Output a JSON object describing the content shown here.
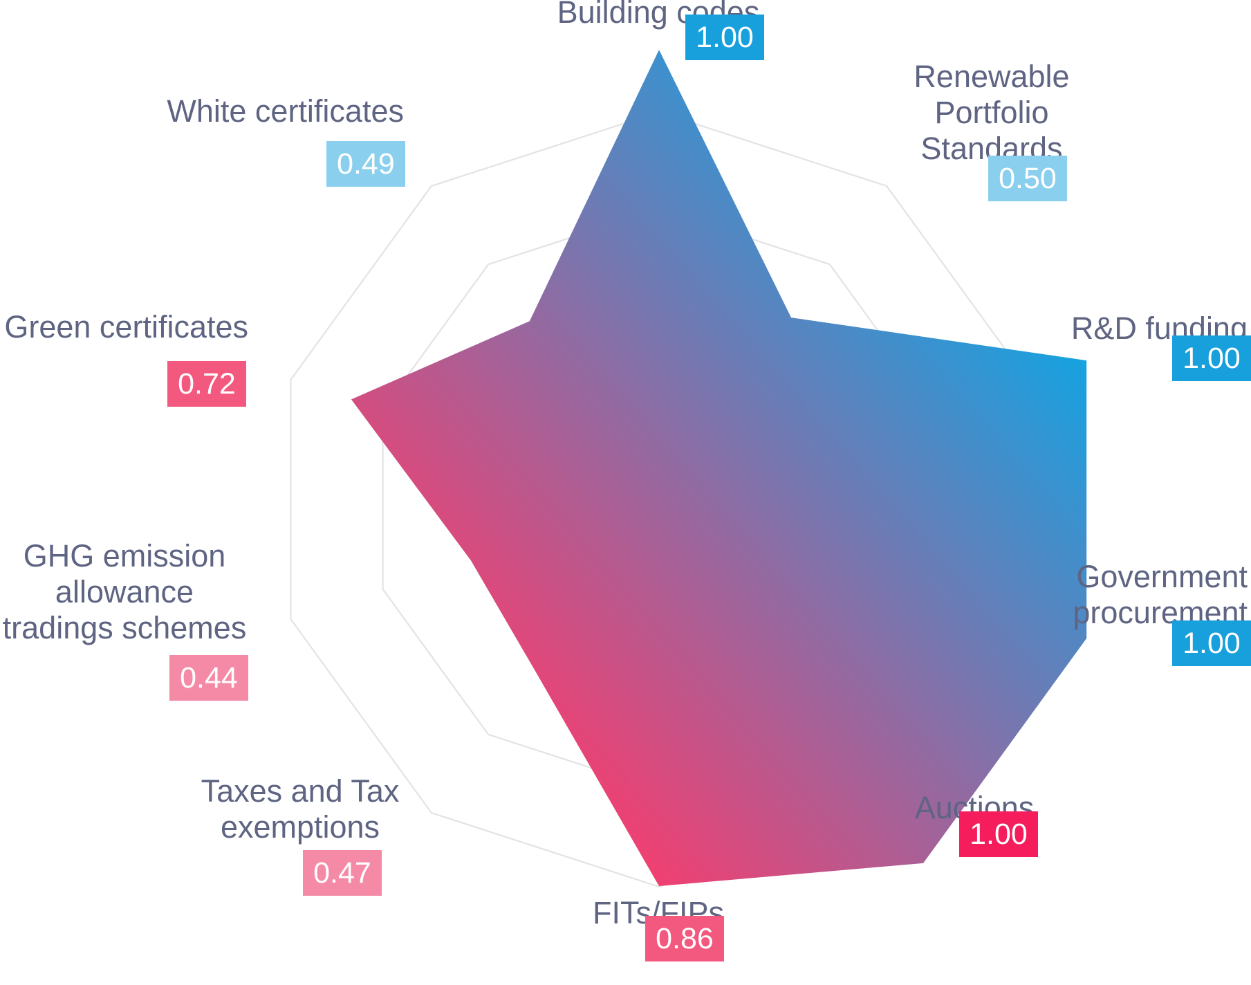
{
  "colors": {
    "blue_strong": "#17a0dc",
    "blue_light": "#8ad0ee",
    "pink_strong": "#f51d5b",
    "pink_mid": "#f3587e",
    "pink_light": "#f48aa6",
    "grid": "#e3e3e3",
    "label": "#5e6482",
    "gradient_top": "#14a3e2",
    "gradient_bottom": "#fb3b6c"
  },
  "chart_data": {
    "type": "radar",
    "max": 1.0,
    "grid_levels": 4,
    "gradient": "blue (top-right) to pink (bottom-left)",
    "axes": [
      {
        "label": [
          "Building codes"
        ],
        "value": 1.0,
        "display": "1.00",
        "badge_color": "#17a0dc"
      },
      {
        "label": [
          "Renewable",
          "Portfolio",
          "Standards"
        ],
        "value": 0.5,
        "display": "0.50",
        "badge_color": "#8ad0ee"
      },
      {
        "label": [
          "R&D funding"
        ],
        "value": 1.0,
        "display": "1.00",
        "badge_color": "#17a0dc"
      },
      {
        "label": [
          "Government",
          "procurement"
        ],
        "value": 1.0,
        "display": "1.00",
        "badge_color": "#17a0dc"
      },
      {
        "label": [
          "Auctions"
        ],
        "value": 1.0,
        "display": "1.00",
        "badge_color": "#f51d5b"
      },
      {
        "label": [
          "FITs/FIPs"
        ],
        "value": 0.86,
        "display": "0.86",
        "badge_color": "#f3587e"
      },
      {
        "label": [
          "Taxes and Tax",
          "exemptions"
        ],
        "value": 0.47,
        "display": "0.47",
        "badge_color": "#f48aa6"
      },
      {
        "label": [
          "GHG emission",
          "allowance",
          "tradings schemes"
        ],
        "value": 0.44,
        "display": "0.44",
        "badge_color": "#f48aa6"
      },
      {
        "label": [
          "Green certificates"
        ],
        "value": 0.72,
        "display": "0.72",
        "badge_color": "#f3587e"
      },
      {
        "label": [
          "White certificates"
        ],
        "value": 0.49,
        "display": "0.49",
        "badge_color": "#8ad0ee"
      }
    ]
  }
}
